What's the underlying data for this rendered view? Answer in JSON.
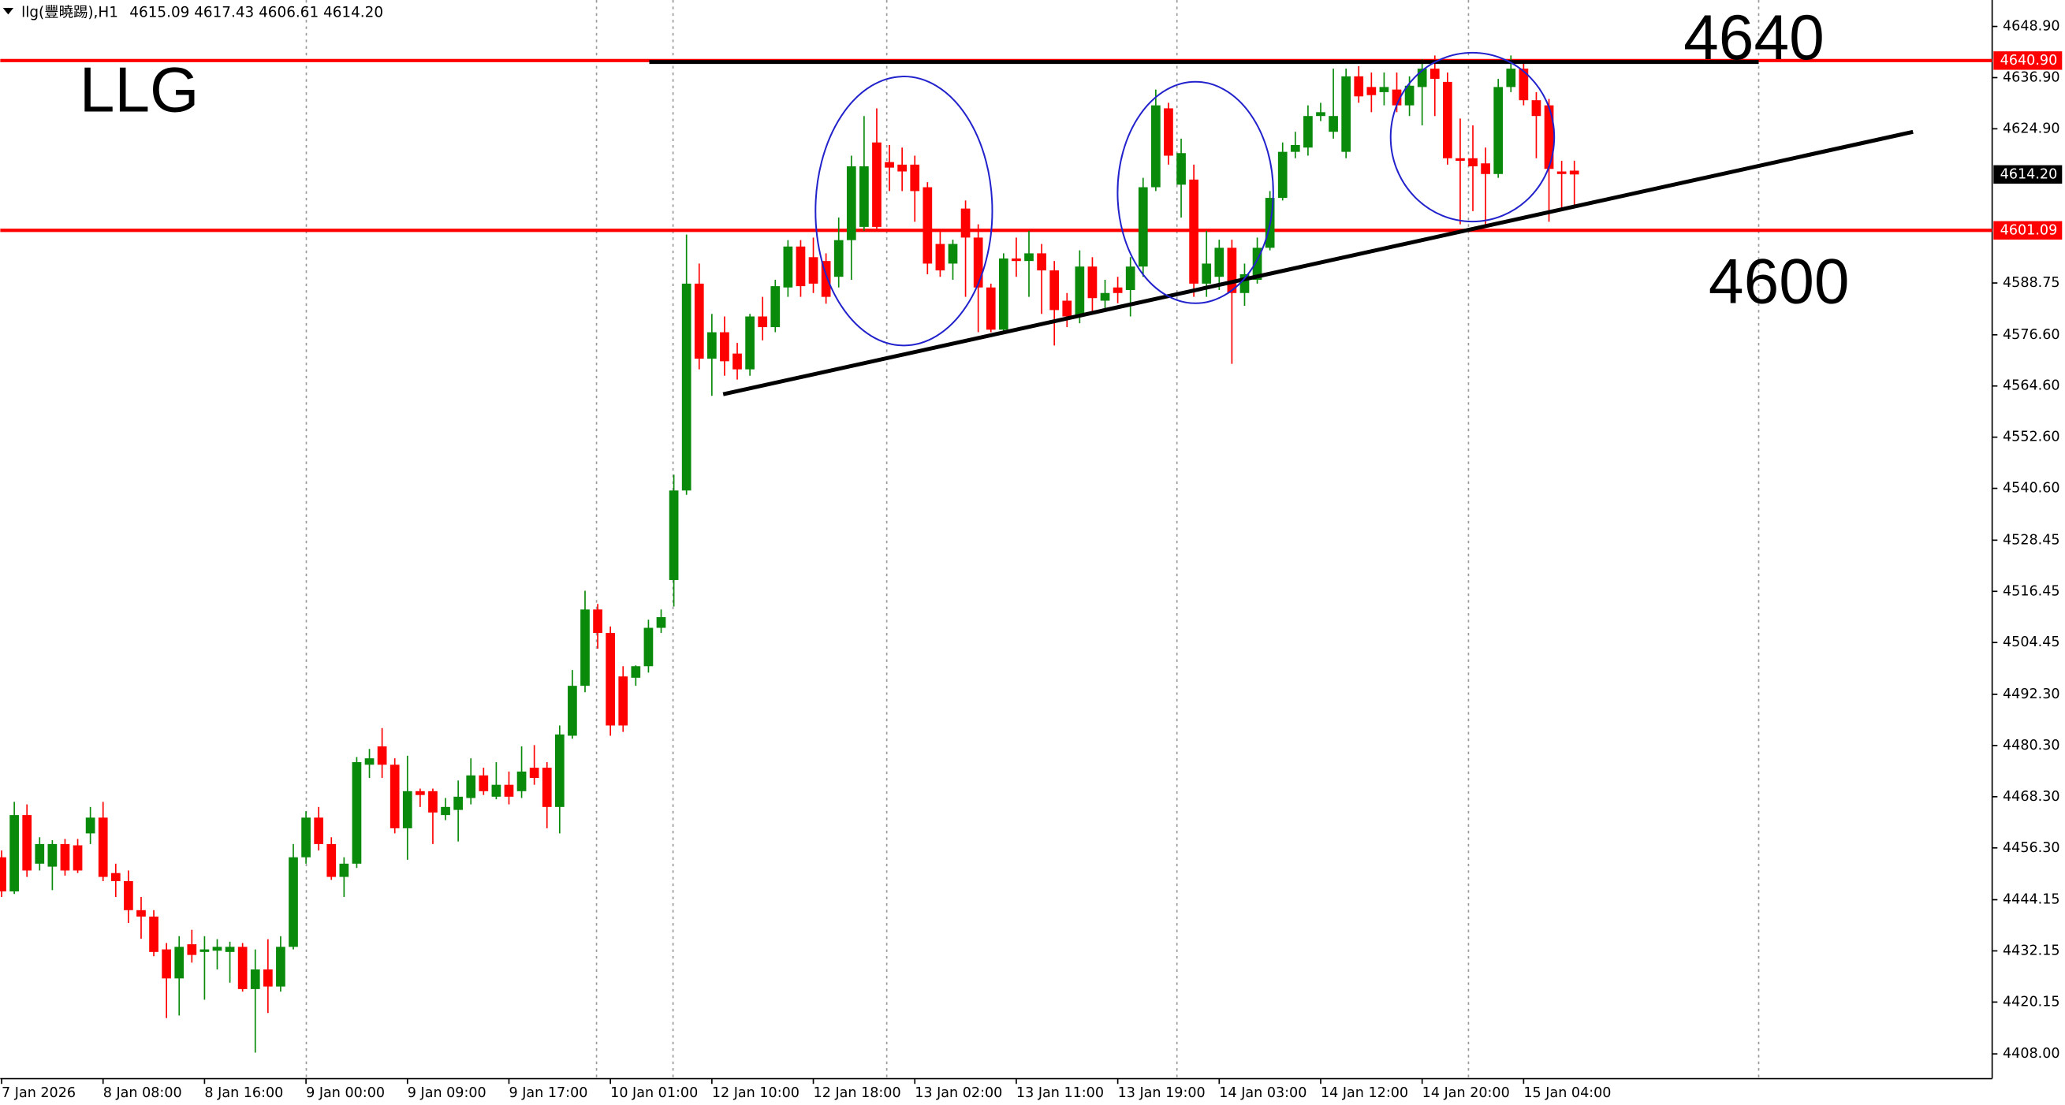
{
  "chart_data": {
    "type": "candlestick",
    "header": "llg(豐曉踢),H1",
    "header_ohlc": "4615.09 4617.43 4606.61 4614.20",
    "annotations": [
      "LLG",
      "4640",
      "4600"
    ],
    "categories": [
      "7 Jan 2026",
      null,
      null,
      null,
      null,
      null,
      null,
      null,
      "8 Jan 08:00",
      null,
      null,
      null,
      null,
      null,
      null,
      null,
      "8 Jan 16:00",
      null,
      null,
      null,
      null,
      null,
      null,
      null,
      "9 Jan 00:00",
      null,
      null,
      null,
      null,
      null,
      null,
      null,
      "9 Jan 09:00",
      null,
      null,
      null,
      null,
      null,
      null,
      null,
      "9 Jan 17:00",
      null,
      null,
      null,
      null,
      null,
      null,
      null,
      "10 Jan 01:00",
      null,
      null,
      null,
      null,
      null,
      null,
      null,
      "12 Jan 10:00",
      null,
      null,
      null,
      null,
      null,
      null,
      null,
      "12 Jan 18:00",
      null,
      null,
      null,
      null,
      null,
      null,
      null,
      "13 Jan 02:00",
      null,
      null,
      null,
      null,
      null,
      null,
      null,
      "13 Jan 11:00",
      null,
      null,
      null,
      null,
      null,
      null,
      null,
      "13 Jan 19:00",
      null,
      null,
      null,
      null,
      null,
      null,
      null,
      "14 Jan 03:00",
      null,
      null,
      null,
      null,
      null,
      null,
      null,
      "14 Jan 12:00",
      null,
      null,
      null,
      null,
      null,
      null,
      null,
      "14 Jan 20:00",
      null,
      null,
      null,
      null,
      null,
      null,
      null,
      "15 Jan 04:00",
      null,
      null,
      null,
      null
    ],
    "open": [
      4454.1,
      4446.1,
      4464.0,
      4452.6,
      4451.9,
      4457.2,
      4456.9,
      4459.7,
      4463.4,
      4450.4,
      4448.5,
      4441.7,
      4440.2,
      4432.5,
      4425.7,
      4433.7,
      4431.9,
      4432.2,
      4431.9,
      4433.1,
      4423.2,
      4427.8,
      4423.8,
      4433.1,
      4454.1,
      4463.4,
      4457.2,
      4449.5,
      4452.6,
      4475.8,
      4480.1,
      4475.8,
      4460.9,
      4469.6,
      4469.6,
      4464.0,
      4465.2,
      4468.0,
      4473.3,
      4468.3,
      4471.1,
      4469.6,
      4475.1,
      4475.1,
      4465.9,
      4482.6,
      4494.3,
      4512.2,
      4506.7,
      4496.5,
      4496.2,
      4498.9,
      4507.9,
      4519.1,
      4540.1,
      4588.6,
      4571.0,
      4577.2,
      4572.2,
      4568.5,
      4580.9,
      4578.4,
      4587.7,
      4597.3,
      4594.8,
      4593.9,
      4590.2,
      4598.8,
      4601.9,
      4621.7,
      4617.1,
      4616.5,
      4616.5,
      4611.2,
      4597.9,
      4593.3,
      4606.2,
      4599.4,
      4587.7,
      4577.8,
      4594.5,
      4593.9,
      4595.7,
      4591.7,
      4584.6,
      4580.9,
      4592.6,
      4584.6,
      4587.7,
      4587.1,
      4592.6,
      4611.2,
      4629.7,
      4611.8,
      4613.0,
      4588.6,
      4590.2,
      4597.0,
      4586.4,
      4589.5,
      4597.0,
      4608.7,
      4619.5,
      4620.5,
      4627.9,
      4624.2,
      4619.5,
      4637.2,
      4634.7,
      4633.5,
      4634.1,
      4630.4,
      4634.7,
      4639.0,
      4635.9,
      4618.0,
      4618.0,
      4616.8,
      4614.3,
      4634.7,
      4639.0,
      4631.6,
      4630.4,
      4614.9,
      4615.09
    ],
    "high": [
      4455.7,
      4467.1,
      4466.5,
      4458.8,
      4458.1,
      4458.4,
      4458.4,
      4465.9,
      4467.1,
      4452.6,
      4451.0,
      4444.8,
      4441.7,
      4434.0,
      4435.6,
      4437.1,
      4435.6,
      4434.9,
      4434.3,
      4434.0,
      4432.5,
      4434.9,
      4435.6,
      4457.2,
      4464.9,
      4465.9,
      4458.8,
      4454.1,
      4477.6,
      4479.5,
      4484.4,
      4477.3,
      4477.9,
      4470.2,
      4470.2,
      4468.0,
      4472.1,
      4477.3,
      4475.1,
      4476.4,
      4474.2,
      4480.1,
      4480.4,
      4476.4,
      4485.0,
      4498.0,
      4516.6,
      4513.5,
      4508.2,
      4498.9,
      4499.1,
      4509.8,
      4512.2,
      4543.8,
      4600.1,
      4593.3,
      4581.5,
      4580.9,
      4574.7,
      4581.5,
      4585.5,
      4589.5,
      4598.8,
      4598.8,
      4599.4,
      4595.7,
      4604.1,
      4618.6,
      4627.9,
      4629.7,
      4621.1,
      4620.5,
      4618.6,
      4612.4,
      4601.0,
      4598.9,
      4608.1,
      4602.5,
      4588.6,
      4595.7,
      4599.4,
      4601.0,
      4597.9,
      4593.9,
      4586.4,
      4596.4,
      4594.8,
      4589.5,
      4590.2,
      4594.8,
      4613.4,
      4634.1,
      4631.0,
      4622.6,
      4616.5,
      4601.0,
      4598.9,
      4598.9,
      4593.3,
      4599.4,
      4610.3,
      4621.7,
      4624.2,
      4630.4,
      4631.0,
      4639.0,
      4639.0,
      4639.6,
      4638.1,
      4638.1,
      4638.1,
      4637.2,
      4641.2,
      4642.1,
      4638.1,
      4627.3,
      4625.7,
      4620.5,
      4636.6,
      4642.1,
      4641.2,
      4633.5,
      4631.9,
      4617.4,
      4617.43
    ],
    "low": [
      4444.8,
      4445.5,
      4449.5,
      4451.0,
      4446.4,
      4449.8,
      4450.4,
      4457.2,
      4448.5,
      4444.8,
      4438.7,
      4435.0,
      4430.9,
      4416.4,
      4417.0,
      4429.4,
      4420.7,
      4427.8,
      4424.7,
      4422.6,
      4408.3,
      4417.6,
      4422.6,
      4432.5,
      4452.6,
      4455.7,
      4448.8,
      4444.8,
      4451.6,
      4472.7,
      4472.7,
      4459.7,
      4453.5,
      4465.9,
      4457.2,
      4462.8,
      4457.8,
      4466.5,
      4468.7,
      4467.7,
      4466.5,
      4468.0,
      4471.1,
      4460.9,
      4459.7,
      4481.9,
      4492.8,
      4503.0,
      4482.6,
      4483.5,
      4494.3,
      4497.4,
      4506.7,
      4512.9,
      4539.1,
      4568.5,
      4562.3,
      4567.0,
      4566.1,
      4567.0,
      4575.3,
      4577.2,
      4585.5,
      4585.5,
      4586.4,
      4583.9,
      4587.7,
      4589.5,
      4601.0,
      4601.0,
      4610.3,
      4610.3,
      4603.1,
      4590.8,
      4590.2,
      4589.5,
      4585.5,
      4577.2,
      4577.2,
      4577.2,
      4590.2,
      4585.5,
      4581.5,
      4574.1,
      4578.4,
      4579.3,
      4581.5,
      4582.4,
      4584.0,
      4580.9,
      4590.2,
      4610.3,
      4616.5,
      4604.1,
      4585.5,
      4585.5,
      4587.1,
      4569.8,
      4583.4,
      4588.6,
      4596.4,
      4608.1,
      4618.0,
      4618.6,
      4626.7,
      4622.6,
      4618.0,
      4631.0,
      4628.8,
      4630.4,
      4628.8,
      4627.9,
      4625.7,
      4627.9,
      4616.5,
      4602.5,
      4605.6,
      4602.5,
      4613.4,
      4633.5,
      4630.4,
      4618.0,
      4603.1,
      4605.6,
      4606.61
    ],
    "close": [
      4446.1,
      4464.0,
      4451.0,
      4457.2,
      4457.2,
      4451.0,
      4451.0,
      4463.4,
      4449.5,
      4448.5,
      4441.7,
      4440.2,
      4431.9,
      4425.7,
      4433.1,
      4431.2,
      4432.5,
      4433.1,
      4433.1,
      4423.2,
      4427.8,
      4423.8,
      4433.1,
      4454.1,
      4463.4,
      4457.2,
      4449.5,
      4452.6,
      4476.4,
      4477.3,
      4475.8,
      4460.9,
      4469.6,
      4468.7,
      4464.6,
      4465.9,
      4468.3,
      4473.3,
      4469.6,
      4471.1,
      4468.3,
      4474.2,
      4472.7,
      4465.9,
      4482.9,
      4494.3,
      4512.2,
      4506.7,
      4485.0,
      4485.0,
      4498.9,
      4507.9,
      4510.4,
      4540.1,
      4588.6,
      4571.0,
      4577.2,
      4570.4,
      4568.5,
      4580.9,
      4578.4,
      4588.0,
      4597.3,
      4588.0,
      4588.6,
      4585.5,
      4598.8,
      4616.1,
      4616.1,
      4601.9,
      4615.8,
      4614.9,
      4610.3,
      4593.3,
      4591.7,
      4597.9,
      4599.4,
      4587.7,
      4577.8,
      4594.5,
      4593.9,
      4595.7,
      4591.7,
      4582.4,
      4580.9,
      4592.6,
      4585.2,
      4586.4,
      4586.4,
      4592.6,
      4611.2,
      4630.4,
      4618.6,
      4619.2,
      4588.6,
      4593.3,
      4597.0,
      4586.4,
      4590.8,
      4597.0,
      4608.7,
      4619.5,
      4621.1,
      4627.9,
      4628.8,
      4627.9,
      4637.2,
      4632.5,
      4632.8,
      4634.7,
      4630.4,
      4635.0,
      4639.0,
      4636.6,
      4618.0,
      4617.4,
      4616.1,
      4614.3,
      4634.7,
      4639.0,
      4631.6,
      4627.9,
      4615.5,
      4614.3,
      4614.2
    ],
    "up_color": "#0a8a0a",
    "down_color": "#ff0000",
    "ylim": [
      4402.2,
      4655.1
    ],
    "yticks": [
      {
        "value": 4648.9,
        "label": "4648.90"
      },
      {
        "value": 4636.9,
        "label": "4636.90"
      },
      {
        "value": 4624.9,
        "label": "4624.90"
      },
      {
        "value": 4588.75,
        "label": "4588.75"
      },
      {
        "value": 4576.6,
        "label": "4576.60"
      },
      {
        "value": 4564.6,
        "label": "4564.60"
      },
      {
        "value": 4552.6,
        "label": "4552.60"
      },
      {
        "value": 4540.6,
        "label": "4540.60"
      },
      {
        "value": 4528.45,
        "label": "4528.45"
      },
      {
        "value": 4516.45,
        "label": "4516.45"
      },
      {
        "value": 4504.45,
        "label": "4504.45"
      },
      {
        "value": 4492.3,
        "label": "4492.30"
      },
      {
        "value": 4480.3,
        "label": "4480.30"
      },
      {
        "value": 4468.3,
        "label": "4468.30"
      },
      {
        "value": 4456.3,
        "label": "4456.30"
      },
      {
        "value": 4444.15,
        "label": "4444.15"
      },
      {
        "value": 4432.15,
        "label": "4432.15"
      },
      {
        "value": 4420.15,
        "label": "4420.15"
      },
      {
        "value": 4408,
        "label": "4408.00"
      }
    ],
    "hlines": [
      {
        "value": 4640.9,
        "label": "4640.90",
        "color": "#ff0000"
      },
      {
        "value": 4601.09,
        "label": "4601.09",
        "color": "#ff0000"
      }
    ],
    "last_price": {
      "value": 4614.2,
      "label": "4614.20"
    }
  }
}
